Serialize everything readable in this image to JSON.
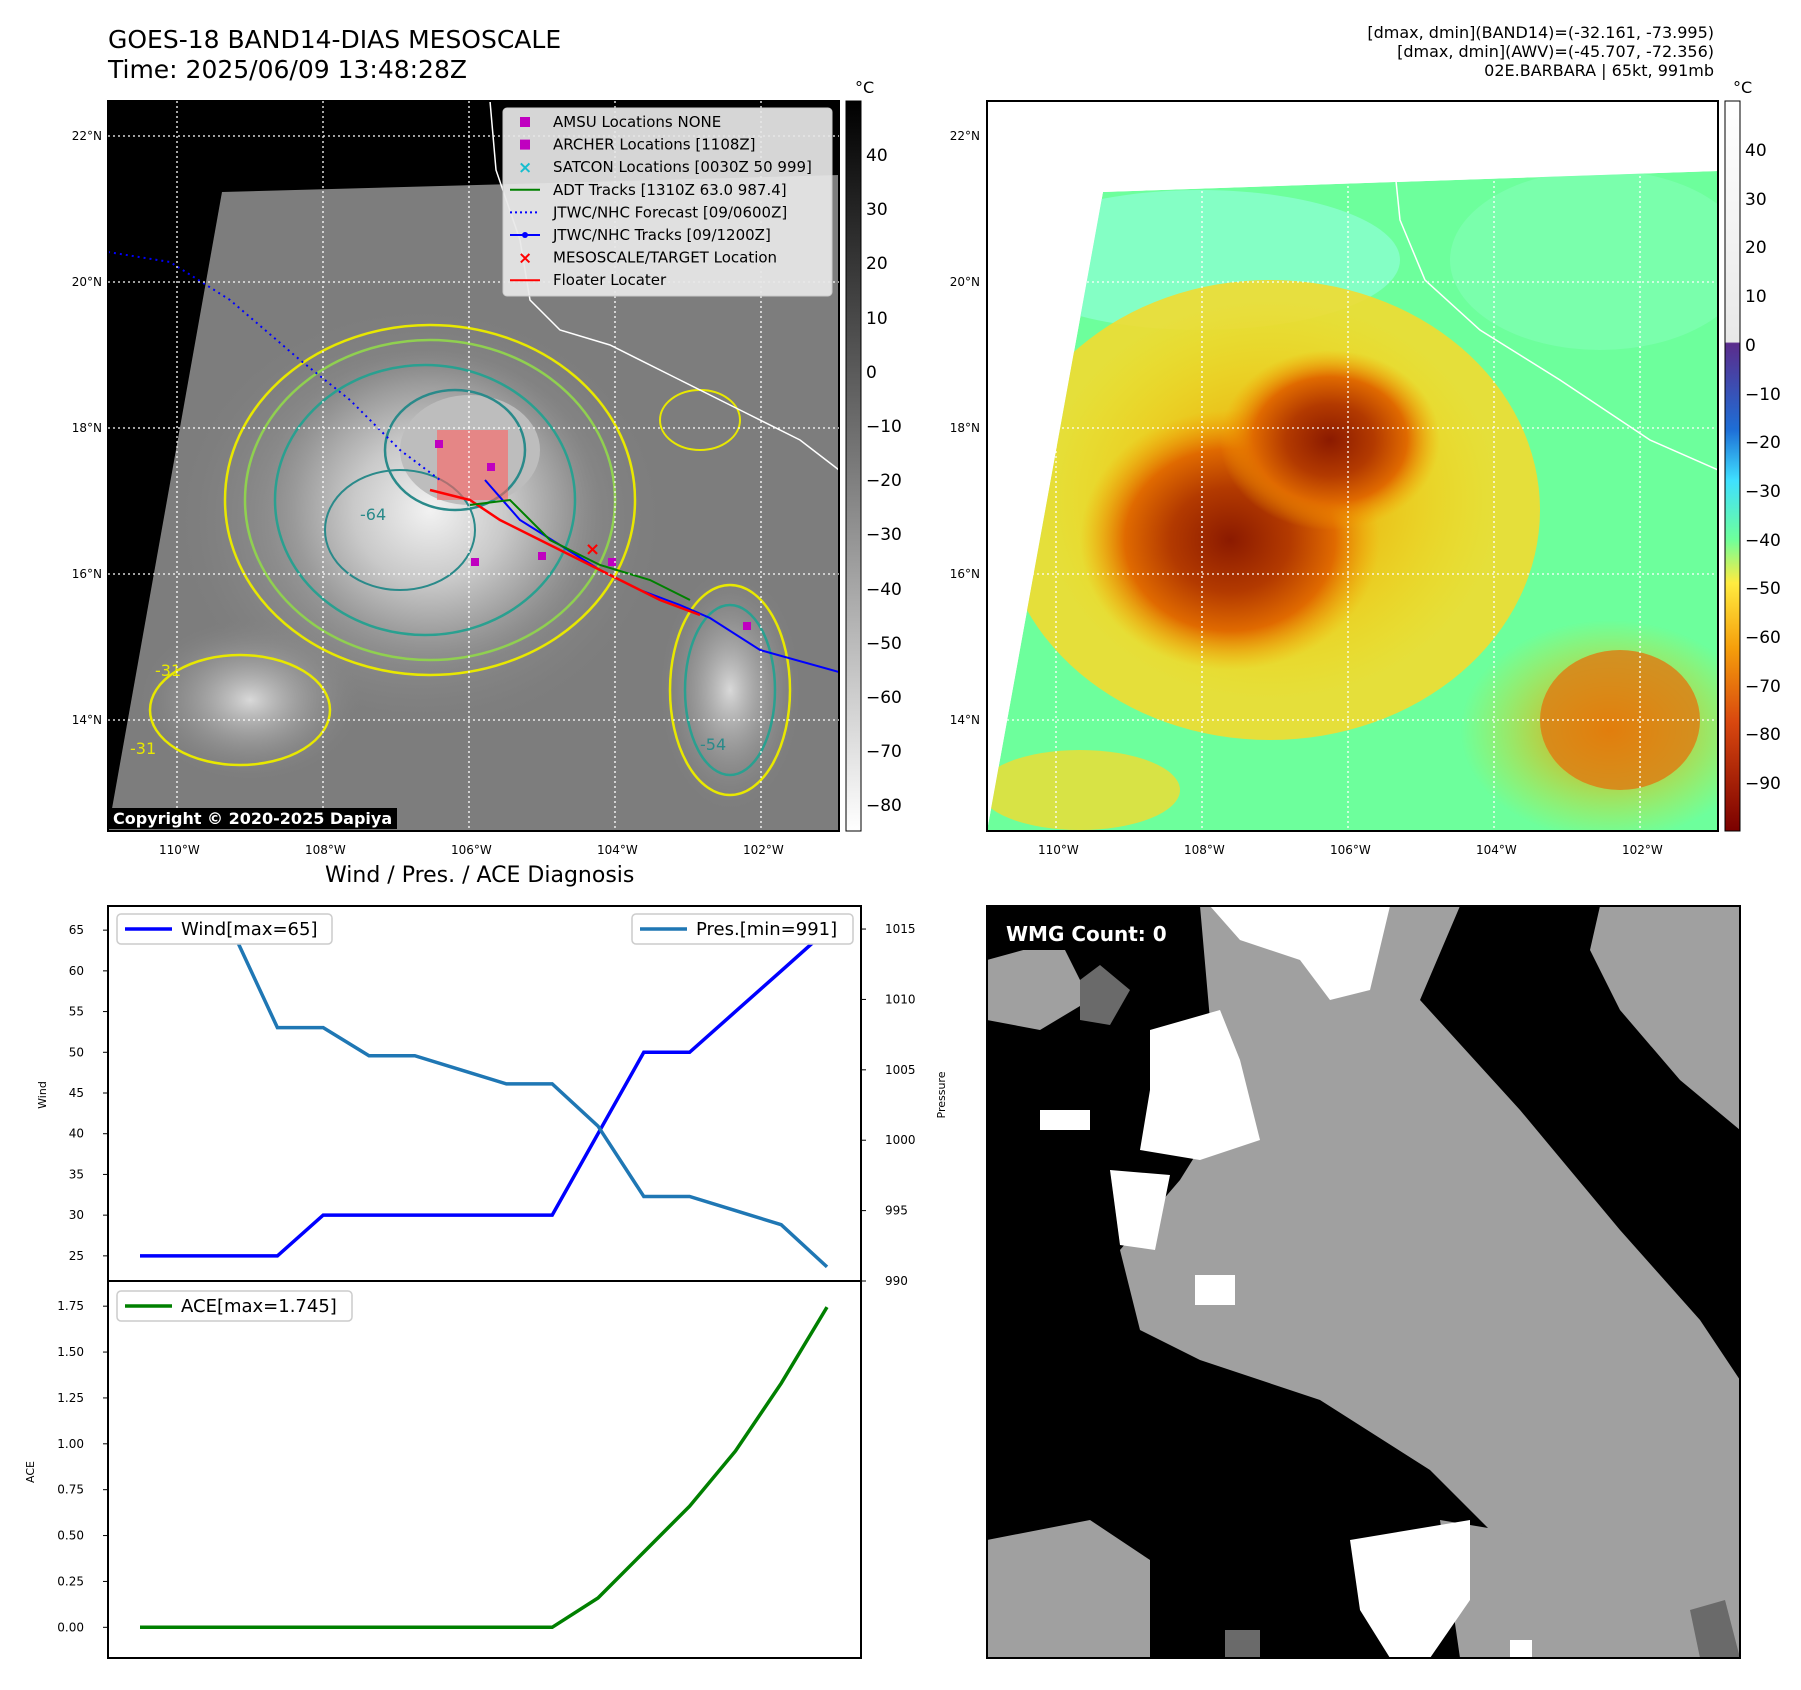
{
  "header": {
    "title_line1": "GOES-18 BAND14-DIAS MESOSCALE",
    "title_line2": "Time: 2025/06/09 13:48:28Z",
    "info_line1": "[dmax, dmin](BAND14)=(-32.161, -73.995)",
    "info_line2": "[dmax, dmin](AWV)=(-45.707, -72.356)",
    "info_line3": "02E.BARBARA | 65kt, 991mb"
  },
  "map": {
    "lat_labels": [
      "22°N",
      "20°N",
      "18°N",
      "16°N",
      "14°N"
    ],
    "lon_labels": [
      "110°W",
      "108°W",
      "106°W",
      "104°W",
      "102°W"
    ],
    "copyright": "Copyright © 2020-2025 Dapiya",
    "legend": [
      {
        "label": "AMSU Locations NONE",
        "marker": "square",
        "color": "#c000c0"
      },
      {
        "label": "ARCHER Locations [1108Z]",
        "marker": "square",
        "color": "#c000c0"
      },
      {
        "label": "SATCON Locations [0030Z 50 999]",
        "marker": "x",
        "color": "#17becf"
      },
      {
        "label": "ADT Tracks [1310Z 63.0 987.4]",
        "marker": "line",
        "color": "#008000"
      },
      {
        "label": "JTWC/NHC Forecast [09/0600Z]",
        "marker": "dotted",
        "color": "#0000ff"
      },
      {
        "label": "JTWC/NHC Tracks [09/1200Z]",
        "marker": "line-dot",
        "color": "#0000ff"
      },
      {
        "label": "MESOSCALE/TARGET Location",
        "marker": "x",
        "color": "#ff0000"
      },
      {
        "label": "Floater Locater",
        "marker": "line",
        "color": "#ff0000"
      }
    ],
    "contour_labels": [
      "-31",
      "-31",
      "-54",
      "-64"
    ]
  },
  "colorbars": {
    "unit": "°C",
    "left_ticks": [
      "40",
      "30",
      "20",
      "10",
      "0",
      "−10",
      "−20",
      "−30",
      "−40",
      "−50",
      "−60",
      "−70",
      "−80"
    ],
    "right_ticks": [
      "40",
      "30",
      "20",
      "10",
      "0",
      "−10",
      "−20",
      "−30",
      "−40",
      "−50",
      "−60",
      "−70",
      "−80",
      "−90"
    ]
  },
  "diagnosis": {
    "title": "Wind / Pres. / ACE Diagnosis",
    "wmg_count": "WMG Count: 0"
  },
  "chart_data": [
    {
      "type": "line",
      "title": "Wind / Pres. / ACE Diagnosis",
      "ylabel": "Wind",
      "ylim": [
        24,
        66
      ],
      "yticks": [
        25,
        30,
        35,
        40,
        45,
        50,
        55,
        60,
        65
      ],
      "series": [
        {
          "name": "Wind[max=65]",
          "color": "#0000ff",
          "values": [
            25,
            25,
            25,
            25,
            30,
            30,
            30,
            30,
            30,
            30,
            40,
            50,
            50,
            55,
            60,
            65
          ]
        }
      ]
    },
    {
      "type": "line",
      "ylabel": "Pressure",
      "ylim": [
        990,
        1015.5
      ],
      "yticks": [
        990,
        995,
        1000,
        1005,
        1010,
        1015
      ],
      "series": [
        {
          "name": "Pres.[min=991]",
          "color": "#1f77b4",
          "values": [
            1015,
            1015,
            1015,
            1008,
            1008,
            1006,
            1006,
            1005,
            1004,
            1004,
            1001,
            996,
            996,
            995,
            994,
            991
          ]
        }
      ]
    },
    {
      "type": "line",
      "ylabel": "ACE",
      "ylim": [
        -0.08,
        1.8
      ],
      "yticks": [
        0.0,
        0.25,
        0.5,
        0.75,
        1.0,
        1.25,
        1.5,
        1.75
      ],
      "ytick_labels": [
        "0.00",
        "0.25",
        "0.50",
        "0.75",
        "1.00",
        "1.25",
        "1.50",
        "1.75"
      ],
      "series": [
        {
          "name": "ACE[max=1.745]",
          "color": "#008000",
          "values": [
            0,
            0,
            0,
            0,
            0,
            0,
            0,
            0,
            0,
            0,
            0.16,
            0.41,
            0.66,
            0.96,
            1.33,
            1.745
          ]
        }
      ]
    }
  ]
}
